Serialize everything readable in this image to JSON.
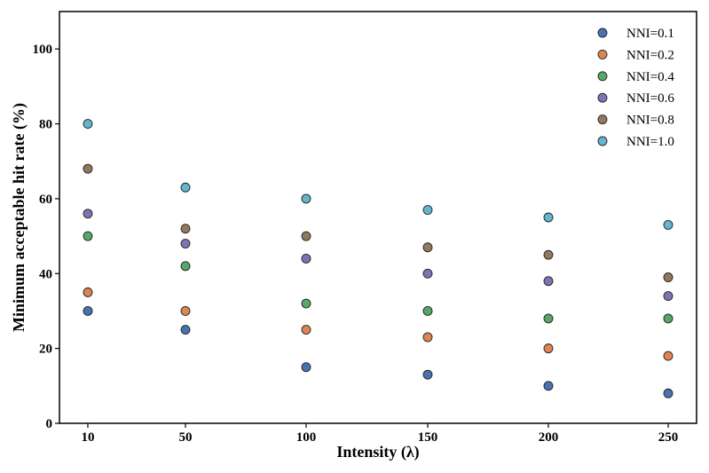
{
  "chart_data": {
    "type": "scatter",
    "title": "",
    "xlabel": "Intensity (λ)",
    "ylabel": "Minimum acceptable hit rate (%)",
    "categories": [
      "10",
      "50",
      "100",
      "150",
      "200",
      "250"
    ],
    "ylim": [
      0,
      110
    ],
    "yticks": [
      0,
      20,
      40,
      60,
      80,
      100
    ],
    "grid": false,
    "legend_position": "top-right",
    "series": [
      {
        "name": "NNI=0.1",
        "color": "#4a72b0",
        "values": [
          30,
          25,
          15,
          13,
          10,
          8
        ]
      },
      {
        "name": "NNI=0.2",
        "color": "#dd8452",
        "values": [
          35,
          30,
          25,
          23,
          20,
          18
        ]
      },
      {
        "name": "NNI=0.4",
        "color": "#55a868",
        "values": [
          50,
          42,
          32,
          30,
          28,
          28
        ]
      },
      {
        "name": "NNI=0.6",
        "color": "#8172b3",
        "values": [
          56,
          48,
          44,
          40,
          38,
          34
        ]
      },
      {
        "name": "NNI=0.8",
        "color": "#937860",
        "values": [
          68,
          52,
          50,
          47,
          45,
          39
        ]
      },
      {
        "name": "NNI=1.0",
        "color": "#64b5cd",
        "values": [
          80,
          63,
          60,
          57,
          55,
          53
        ]
      }
    ]
  }
}
